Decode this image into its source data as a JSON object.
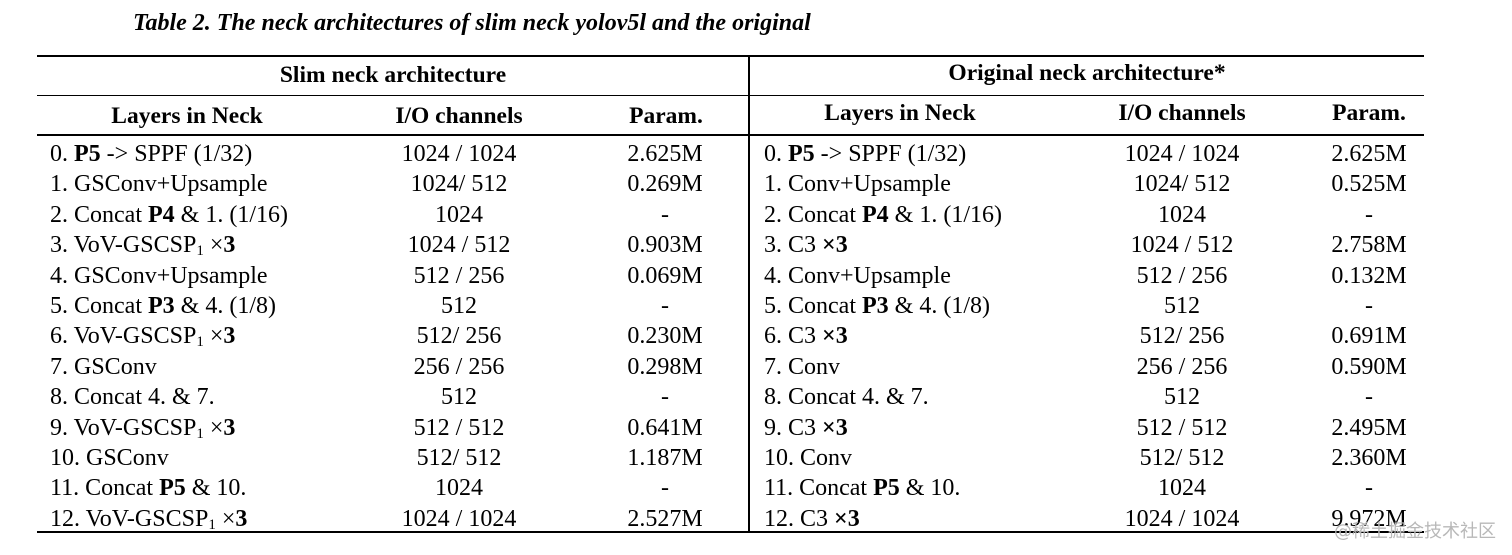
{
  "caption": "Table 2. The neck architectures of slim neck yolov5l and the original",
  "groups": {
    "slim": "Slim neck architecture",
    "original": "Original neck architecture*"
  },
  "headers": {
    "layers": "Layers in Neck",
    "io": "I/O channels",
    "param": "Param."
  },
  "slim_rows": [
    {
      "layer": [
        [
          "0. ",
          false
        ],
        [
          "P5",
          true
        ],
        [
          " -> SPPF (1/32)",
          false
        ]
      ],
      "io": "1024 / 1024",
      "param": "2.625M"
    },
    {
      "layer": [
        [
          "1. GSConv+Upsample",
          false
        ]
      ],
      "io": "1024/ 512",
      "param": "0.269M"
    },
    {
      "layer": [
        [
          "2. Concat ",
          false
        ],
        [
          "P4",
          true
        ],
        [
          " & 1. (1/16)",
          false
        ]
      ],
      "io": "1024",
      "param": "-"
    },
    {
      "layer": [
        [
          "3. VoV-GSCSP",
          false
        ],
        [
          "1",
          "sub"
        ],
        [
          " ×",
          false
        ],
        [
          "3",
          true
        ]
      ],
      "io": "1024 / 512",
      "param": "0.903M"
    },
    {
      "layer": [
        [
          "4. GSConv+Upsample",
          false
        ]
      ],
      "io": "512 / 256",
      "param": "0.069M"
    },
    {
      "layer": [
        [
          "5. Concat ",
          false
        ],
        [
          "P3",
          true
        ],
        [
          " & 4. (1/8)",
          false
        ]
      ],
      "io": "512",
      "param": "-"
    },
    {
      "layer": [
        [
          "6. VoV-GSCSP",
          false
        ],
        [
          "1",
          "sub"
        ],
        [
          " ×",
          false
        ],
        [
          "3",
          true
        ]
      ],
      "io": "512/ 256",
      "param": "0.230M"
    },
    {
      "layer": [
        [
          "7. GSConv",
          false
        ]
      ],
      "io": "256 / 256",
      "param": "0.298M"
    },
    {
      "layer": [
        [
          "8. Concat 4. & 7.",
          false
        ]
      ],
      "io": "512",
      "param": "-"
    },
    {
      "layer": [
        [
          "9. VoV-GSCSP",
          false
        ],
        [
          "1",
          "sub"
        ],
        [
          " ×",
          false
        ],
        [
          "3",
          true
        ]
      ],
      "io": "512 / 512",
      "param": "0.641M"
    },
    {
      "layer": [
        [
          "10. GSConv",
          false
        ]
      ],
      "io": "512/ 512",
      "param": "1.187M"
    },
    {
      "layer": [
        [
          "11. Concat ",
          false
        ],
        [
          "P5",
          true
        ],
        [
          " & 10.",
          false
        ]
      ],
      "io": "1024",
      "param": "-"
    },
    {
      "layer": [
        [
          "12. VoV-GSCSP",
          false
        ],
        [
          "1",
          "sub"
        ],
        [
          " ×",
          false
        ],
        [
          "3",
          true
        ]
      ],
      "io": "1024 / 1024",
      "param": "2.527M"
    }
  ],
  "original_rows": [
    {
      "layer": [
        [
          "0. ",
          false
        ],
        [
          "P5",
          true
        ],
        [
          " -> SPPF (1/32)",
          false
        ]
      ],
      "io": "1024 / 1024",
      "param": "2.625M"
    },
    {
      "layer": [
        [
          "1. Conv+Upsample",
          false
        ]
      ],
      "io": "1024/ 512",
      "param": "0.525M"
    },
    {
      "layer": [
        [
          "2. Concat ",
          false
        ],
        [
          "P4",
          true
        ],
        [
          " & 1. (1/16)",
          false
        ]
      ],
      "io": "1024",
      "param": "-"
    },
    {
      "layer": [
        [
          "3. C3 ",
          false
        ],
        [
          "×3",
          true
        ]
      ],
      "io": "1024 / 512",
      "param": "2.758M"
    },
    {
      "layer": [
        [
          "4. Conv+Upsample",
          false
        ]
      ],
      "io": "512 / 256",
      "param": "0.132M"
    },
    {
      "layer": [
        [
          "5. Concat ",
          false
        ],
        [
          "P3",
          true
        ],
        [
          " & 4. (1/8)",
          false
        ]
      ],
      "io": "512",
      "param": "-"
    },
    {
      "layer": [
        [
          "6. C3 ",
          false
        ],
        [
          "×3",
          true
        ]
      ],
      "io": "512/ 256",
      "param": "0.691M"
    },
    {
      "layer": [
        [
          "7. Conv",
          false
        ]
      ],
      "io": "256 / 256",
      "param": "0.590M"
    },
    {
      "layer": [
        [
          "8. Concat 4. & 7.",
          false
        ]
      ],
      "io": "512",
      "param": "-"
    },
    {
      "layer": [
        [
          "9. C3 ",
          false
        ],
        [
          "×3",
          true
        ]
      ],
      "io": "512 / 512",
      "param": "2.495M"
    },
    {
      "layer": [
        [
          "10. Conv",
          false
        ]
      ],
      "io": "512/ 512",
      "param": "2.360M"
    },
    {
      "layer": [
        [
          "11. Concat ",
          false
        ],
        [
          "P5",
          true
        ],
        [
          " & 10.",
          false
        ]
      ],
      "io": "1024",
      "param": "-"
    },
    {
      "layer": [
        [
          "12. C3 ",
          false
        ],
        [
          "×3",
          true
        ]
      ],
      "io": "1024 / 1024",
      "param": "9.972M"
    }
  ],
  "watermark": "@稀土掘金技术社区"
}
